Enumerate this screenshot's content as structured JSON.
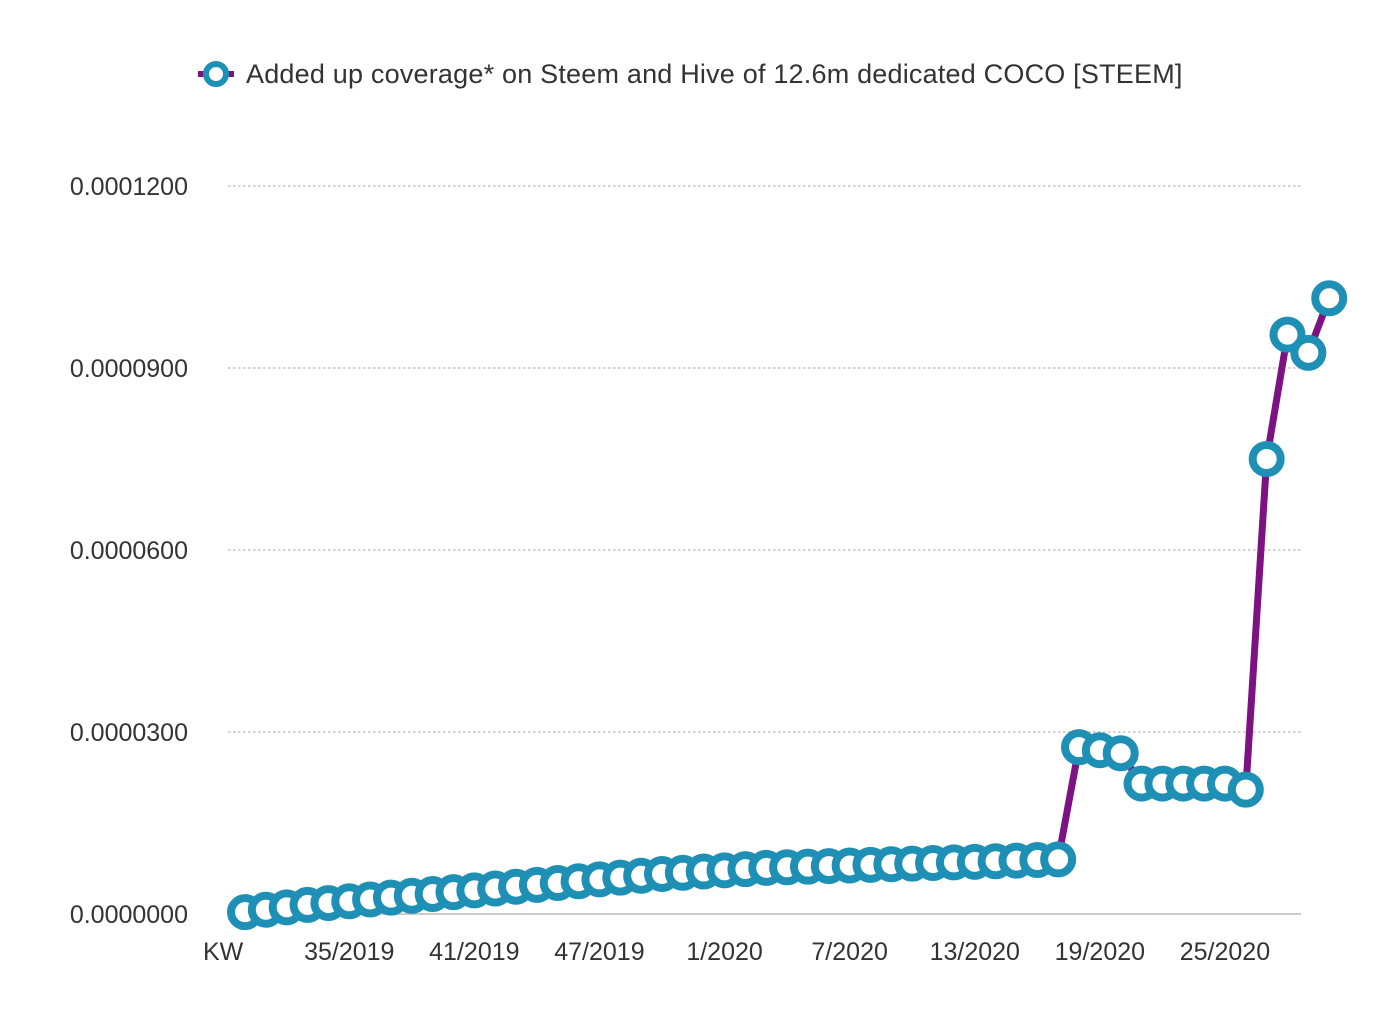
{
  "colors": {
    "line": "#7d1283",
    "marker_stroke": "#1e8fb5",
    "marker_fill": "#ffffff",
    "grid": "#b8b8b8",
    "axis": "#bbbbbb",
    "text": "#333333"
  },
  "legend": {
    "label": "Added up coverage* on Steem and Hive of 12.6m dedicated COCO [STEEM]",
    "position": "top-right"
  },
  "chart_data": {
    "type": "line",
    "title": "",
    "xlabel": "",
    "ylabel": "",
    "ylim": [
      0,
      0.00012
    ],
    "grid": true,
    "y_ticks": [
      "0.0000000",
      "0.0000300",
      "0.0000600",
      "0.0000900",
      "0.0001200"
    ],
    "y_tick_values": [
      0,
      3e-05,
      6e-05,
      9e-05,
      0.00012
    ],
    "x_tick_labels": [
      {
        "index": 0,
        "label": "KW"
      },
      {
        "index": 5,
        "label": "35/2019"
      },
      {
        "index": 11,
        "label": "41/2019"
      },
      {
        "index": 17,
        "label": "47/2019"
      },
      {
        "index": 23,
        "label": "1/2020"
      },
      {
        "index": 29,
        "label": "7/2020"
      },
      {
        "index": 35,
        "label": "13/2020"
      },
      {
        "index": 41,
        "label": "19/2020"
      },
      {
        "index": 47,
        "label": "25/2020"
      }
    ],
    "series": [
      {
        "name": "Added up coverage* on Steem and Hive of 12.6m dedicated COCO [STEEM]",
        "values": [
          3e-07,
          7e-07,
          1.1e-06,
          1.5e-06,
          1.8e-06,
          2.1e-06,
          2.4e-06,
          2.7e-06,
          3e-06,
          3.3e-06,
          3.6e-06,
          3.9e-06,
          4.2e-06,
          4.5e-06,
          4.8e-06,
          5.1e-06,
          5.4e-06,
          5.7e-06,
          6e-06,
          6.3e-06,
          6.6e-06,
          6.8e-06,
          7e-06,
          7.2e-06,
          7.4e-06,
          7.6e-06,
          7.7e-06,
          7.8e-06,
          7.9e-06,
          8e-06,
          8.1e-06,
          8.2e-06,
          8.3e-06,
          8.4e-06,
          8.5e-06,
          8.6e-06,
          8.7e-06,
          8.8e-06,
          8.9e-06,
          9e-06,
          2.75e-05,
          2.7e-05,
          2.65e-05,
          2.15e-05,
          2.15e-05,
          2.15e-05,
          2.15e-05,
          2.15e-05,
          2.05e-05,
          7.5e-05,
          9.55e-05,
          9.25e-05,
          0.0001015
        ]
      }
    ]
  }
}
